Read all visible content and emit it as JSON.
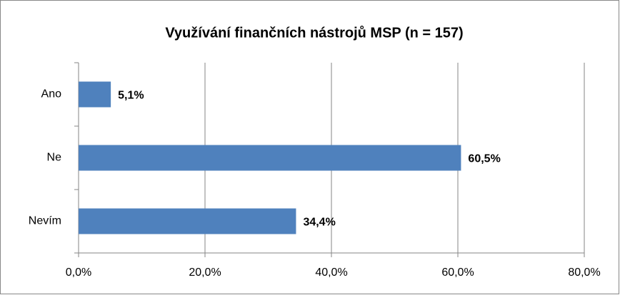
{
  "chart_data": {
    "type": "barh",
    "title": "Využívání finančních nástrojů MSP (n = 157)",
    "categories": [
      "Ano",
      "Ne",
      "Nevím"
    ],
    "values": [
      5.1,
      60.5,
      34.4
    ],
    "value_labels": [
      "5,1%",
      "60,5%",
      "34,4%"
    ],
    "color": "#4f81bd",
    "xlim": [
      0,
      80
    ],
    "xticks": [
      {
        "value": 0,
        "label": "0,0%"
      },
      {
        "value": 20,
        "label": "20,0%"
      },
      {
        "value": 40,
        "label": "40,0%"
      },
      {
        "value": 60,
        "label": "60,0%"
      },
      {
        "value": 80,
        "label": "80,0%"
      }
    ],
    "grid": true
  }
}
